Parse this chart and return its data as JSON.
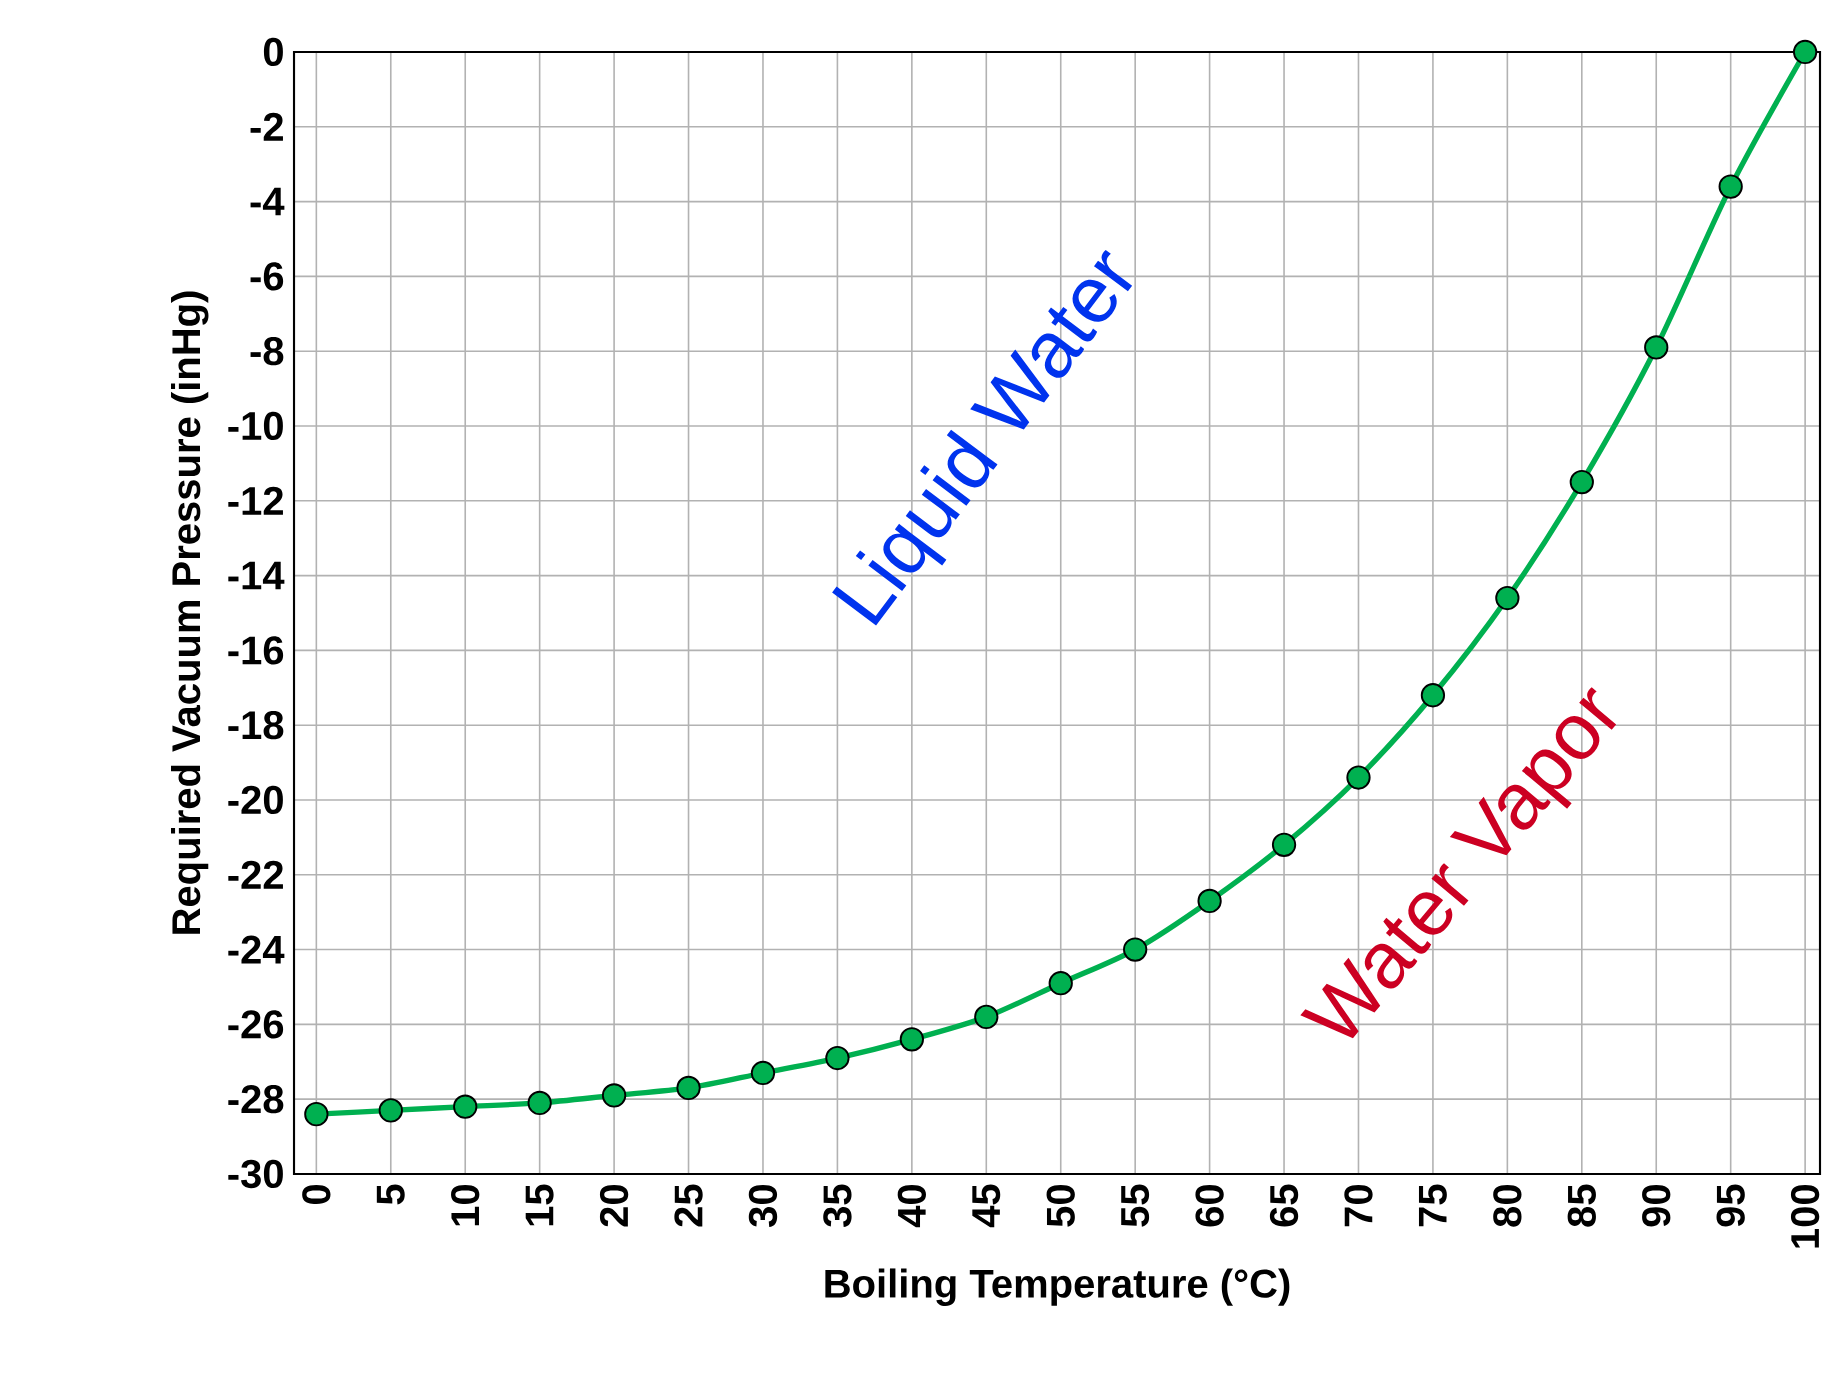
{
  "chart_data": {
    "type": "line",
    "xlabel": "Boiling Temperature (°C)",
    "ylabel": "Required Vacuum Pressure (inHg)",
    "x": [
      0,
      5,
      10,
      15,
      20,
      25,
      30,
      35,
      40,
      45,
      50,
      55,
      60,
      65,
      70,
      75,
      80,
      85,
      90,
      95,
      100
    ],
    "series": [
      {
        "color": "#00b050",
        "values": [
          -28.4,
          -28.3,
          -28.2,
          -28.1,
          -27.9,
          -27.7,
          -27.3,
          -26.9,
          -26.4,
          -25.8,
          -24.9,
          -24.0,
          -22.7,
          -21.2,
          -19.4,
          -17.2,
          -14.6,
          -11.5,
          -7.9,
          -3.6,
          0
        ]
      }
    ],
    "xlim": [
      -1.5,
      101
    ],
    "xticks": [
      0,
      5,
      10,
      15,
      20,
      25,
      30,
      35,
      40,
      45,
      50,
      55,
      60,
      65,
      70,
      75,
      80,
      85,
      90,
      95,
      100
    ],
    "ylim": [
      -30,
      0
    ],
    "yticks": [
      -30,
      -28,
      -26,
      -24,
      -22,
      -20,
      -18,
      -16,
      -14,
      -12,
      -10,
      -8,
      -6,
      -4,
      -2,
      0
    ],
    "annotations": [
      "Liquid Water",
      "Water Vapor"
    ],
    "grid": true,
    "marker": "circle",
    "line_style": "solid"
  }
}
